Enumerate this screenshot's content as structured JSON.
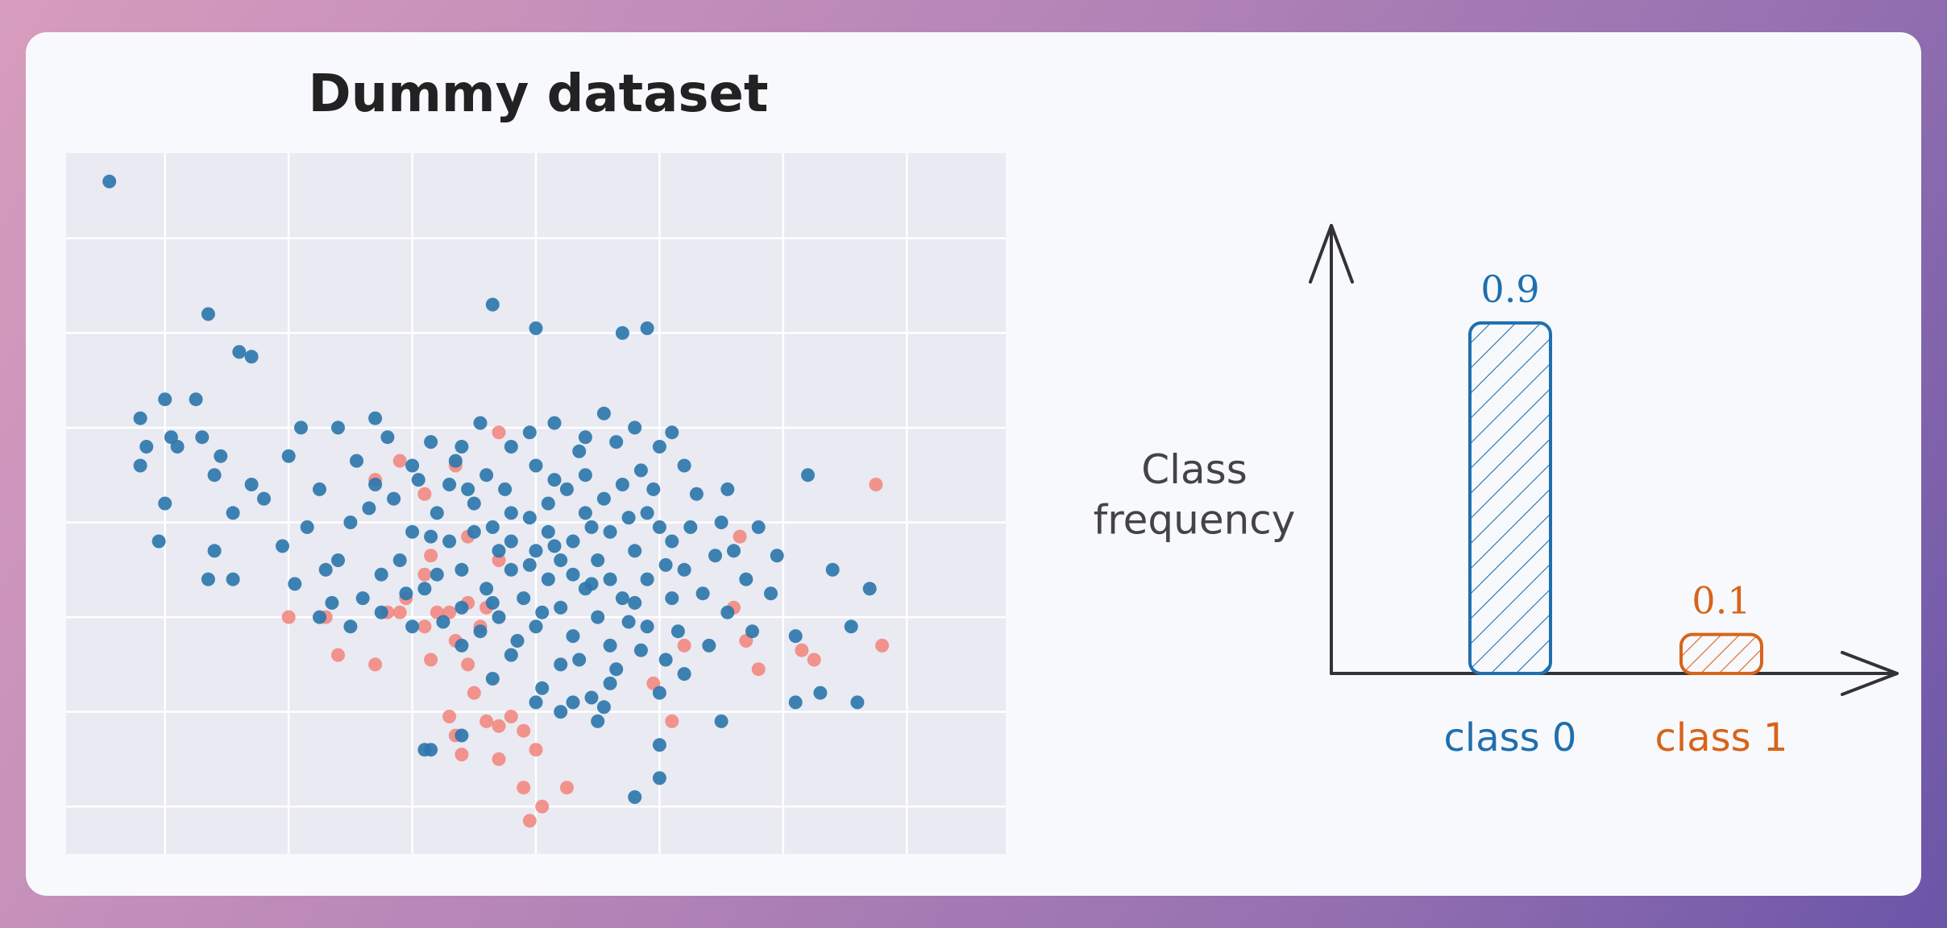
{
  "chart_data": [
    {
      "type": "scatter",
      "title": "Dummy dataset",
      "xlabel": "",
      "ylabel": "",
      "xlim": [
        -3.8,
        3.8
      ],
      "ylim": [
        -3.0,
        4.4
      ],
      "grid": true,
      "tick_labels_visible": false,
      "series": [
        {
          "name": "class 0",
          "color": "#2e77ad",
          "points": [
            [
              -3.45,
              4.1
            ],
            [
              -2.65,
              2.7
            ],
            [
              -2.4,
              2.3
            ],
            [
              -2.3,
              2.25
            ],
            [
              -3.0,
              1.8
            ],
            [
              -2.75,
              1.8
            ],
            [
              -3.2,
              1.6
            ],
            [
              -2.95,
              1.4
            ],
            [
              -2.7,
              1.4
            ],
            [
              -3.15,
              1.3
            ],
            [
              -2.9,
              1.3
            ],
            [
              -2.55,
              1.2
            ],
            [
              -3.2,
              1.1
            ],
            [
              -2.6,
              1.0
            ],
            [
              -2.3,
              0.9
            ],
            [
              -3.0,
              0.7
            ],
            [
              -2.45,
              0.6
            ],
            [
              -3.05,
              0.3
            ],
            [
              -2.6,
              0.2
            ],
            [
              -2.65,
              -0.1
            ],
            [
              -2.45,
              -0.1
            ],
            [
              -1.3,
              1.6
            ],
            [
              -0.35,
              2.8
            ],
            [
              0.0,
              2.55
            ],
            [
              0.7,
              2.5
            ],
            [
              0.9,
              2.55
            ],
            [
              2.2,
              1.0
            ],
            [
              2.4,
              0.0
            ],
            [
              2.7,
              -0.2
            ],
            [
              2.55,
              -0.6
            ],
            [
              2.1,
              -0.7
            ],
            [
              2.3,
              -1.3
            ],
            [
              2.1,
              -1.4
            ],
            [
              2.6,
              -1.4
            ],
            [
              1.0,
              -1.85
            ],
            [
              1.5,
              -1.6
            ],
            [
              -0.6,
              -1.75
            ],
            [
              -0.85,
              -1.9
            ],
            [
              -0.9,
              -1.9
            ],
            [
              0.8,
              -2.4
            ],
            [
              1.0,
              -2.2
            ],
            [
              0.3,
              -1.4
            ],
            [
              0.5,
              -1.6
            ],
            [
              -1.75,
              -0.5
            ],
            [
              -1.5,
              -0.6
            ],
            [
              -1.7,
              0.0
            ],
            [
              -2.0,
              1.2
            ],
            [
              -1.6,
              1.5
            ],
            [
              -1.9,
              1.5
            ],
            [
              -1.2,
              1.4
            ],
            [
              -0.6,
              1.3
            ],
            [
              -0.2,
              1.3
            ],
            [
              0.4,
              1.4
            ],
            [
              0.8,
              1.5
            ],
            [
              1.0,
              1.3
            ],
            [
              1.2,
              1.1
            ],
            [
              1.3,
              0.8
            ],
            [
              1.5,
              0.5
            ],
            [
              1.6,
              0.2
            ],
            [
              1.7,
              -0.1
            ],
            [
              1.55,
              -0.45
            ],
            [
              1.4,
              -0.8
            ],
            [
              1.2,
              -1.1
            ],
            [
              1.0,
              -1.3
            ],
            [
              0.6,
              -1.2
            ],
            [
              0.2,
              -1.0
            ],
            [
              -0.2,
              -0.9
            ],
            [
              -0.6,
              -0.8
            ],
            [
              -1.0,
              -0.6
            ],
            [
              -1.4,
              -0.3
            ],
            [
              -1.6,
              0.1
            ],
            [
              -1.5,
              0.5
            ],
            [
              -1.3,
              0.9
            ],
            [
              -1.0,
              1.1
            ],
            [
              -0.7,
              0.9
            ],
            [
              -0.4,
              1.0
            ],
            [
              0.0,
              1.1
            ],
            [
              0.4,
              1.0
            ],
            [
              0.7,
              0.9
            ],
            [
              0.9,
              0.6
            ],
            [
              1.1,
              0.3
            ],
            [
              1.2,
              0.0
            ],
            [
              1.1,
              -0.3
            ],
            [
              0.9,
              -0.6
            ],
            [
              0.6,
              -0.8
            ],
            [
              0.3,
              -0.7
            ],
            [
              0.0,
              -0.6
            ],
            [
              -0.3,
              -0.5
            ],
            [
              -0.6,
              -0.4
            ],
            [
              -0.9,
              -0.2
            ],
            [
              -1.1,
              0.1
            ],
            [
              -1.0,
              0.4
            ],
            [
              -0.8,
              0.6
            ],
            [
              -0.5,
              0.7
            ],
            [
              -0.2,
              0.6
            ],
            [
              0.1,
              0.7
            ],
            [
              0.4,
              0.6
            ],
            [
              0.6,
              0.4
            ],
            [
              0.8,
              0.2
            ],
            [
              0.9,
              -0.1
            ],
            [
              0.7,
              -0.3
            ],
            [
              0.5,
              -0.5
            ],
            [
              0.2,
              -0.4
            ],
            [
              -0.1,
              -0.3
            ],
            [
              -0.4,
              -0.2
            ],
            [
              -0.6,
              0.0
            ],
            [
              -0.7,
              0.3
            ],
            [
              -0.5,
              0.4
            ],
            [
              -0.2,
              0.3
            ],
            [
              0.1,
              0.4
            ],
            [
              0.3,
              0.3
            ],
            [
              0.5,
              0.1
            ],
            [
              0.6,
              -0.1
            ],
            [
              0.4,
              -0.2
            ],
            [
              0.1,
              -0.1
            ],
            [
              -0.2,
              0.0
            ],
            [
              -0.3,
              0.2
            ],
            [
              0.0,
              0.2
            ],
            [
              0.2,
              0.1
            ],
            [
              0.3,
              -0.05
            ],
            [
              -0.05,
              0.05
            ],
            [
              0.15,
              0.25
            ],
            [
              -0.35,
              0.45
            ],
            [
              0.45,
              0.45
            ],
            [
              0.55,
              0.75
            ],
            [
              -0.55,
              0.85
            ],
            [
              0.25,
              0.85
            ],
            [
              -0.25,
              0.85
            ],
            [
              0.85,
              1.05
            ],
            [
              -0.85,
              0.35
            ],
            [
              -1.25,
              -0.05
            ],
            [
              1.05,
              0.05
            ],
            [
              1.35,
              -0.25
            ],
            [
              1.25,
              0.45
            ],
            [
              0.75,
              -0.55
            ],
            [
              0.35,
              -0.95
            ],
            [
              -0.15,
              -0.75
            ],
            [
              -0.45,
              -0.65
            ],
            [
              -0.75,
              -0.55
            ],
            [
              0.85,
              -0.85
            ],
            [
              1.05,
              -0.95
            ],
            [
              0.65,
              -1.05
            ],
            [
              1.45,
              0.15
            ],
            [
              -1.35,
              0.65
            ],
            [
              -1.15,
              0.75
            ],
            [
              -0.95,
              0.95
            ],
            [
              0.95,
              0.85
            ],
            [
              0.35,
              1.25
            ],
            [
              -0.05,
              1.45
            ],
            [
              0.65,
              1.35
            ],
            [
              0.55,
              1.65
            ],
            [
              0.15,
              1.55
            ],
            [
              -0.45,
              1.55
            ],
            [
              -0.85,
              1.35
            ],
            [
              -1.45,
              1.15
            ],
            [
              -1.75,
              0.85
            ],
            [
              -1.85,
              0.45
            ],
            [
              -2.05,
              0.25
            ],
            [
              -2.2,
              0.75
            ],
            [
              -1.95,
              -0.15
            ],
            [
              -1.65,
              -0.35
            ],
            [
              -1.25,
              -0.45
            ],
            [
              -0.35,
              -1.15
            ],
            [
              0.05,
              -1.25
            ],
            [
              0.45,
              -1.35
            ],
            [
              1.75,
              -0.65
            ],
            [
              1.9,
              -0.25
            ],
            [
              1.95,
              0.15
            ],
            [
              1.8,
              0.45
            ],
            [
              1.55,
              0.85
            ],
            [
              1.1,
              1.45
            ],
            [
              0.0,
              -1.4
            ],
            [
              0.2,
              -1.5
            ],
            [
              0.55,
              -1.45
            ],
            [
              0.8,
              -0.35
            ],
            [
              -0.8,
              -0.05
            ],
            [
              -0.05,
              0.55
            ],
            [
              0.05,
              -0.45
            ],
            [
              1.0,
              0.45
            ],
            [
              -1.05,
              -0.25
            ],
            [
              0.15,
              0.95
            ],
            [
              -0.65,
              1.15
            ],
            [
              0.75,
              0.55
            ],
            [
              1.15,
              -0.65
            ],
            [
              -0.35,
              -0.35
            ],
            [
              0.45,
              -0.15
            ]
          ]
        },
        {
          "name": "class 1",
          "color": "#f2837a",
          "points": [
            [
              -2.0,
              -0.5
            ],
            [
              -1.7,
              -0.5
            ],
            [
              -1.6,
              -0.9
            ],
            [
              -1.3,
              -1.0
            ],
            [
              -0.9,
              -0.6
            ],
            [
              -0.85,
              -0.95
            ],
            [
              -0.7,
              -0.45
            ],
            [
              -0.65,
              -0.75
            ],
            [
              -0.55,
              -1.0
            ],
            [
              -0.5,
              -1.3
            ],
            [
              -0.7,
              -1.55
            ],
            [
              -0.65,
              -1.75
            ],
            [
              -0.4,
              -1.6
            ],
            [
              -0.3,
              -1.65
            ],
            [
              -0.2,
              -1.55
            ],
            [
              -0.1,
              -1.7
            ],
            [
              0.0,
              -1.9
            ],
            [
              -0.3,
              -2.0
            ],
            [
              -0.1,
              -2.3
            ],
            [
              0.05,
              -2.5
            ],
            [
              0.25,
              -2.3
            ],
            [
              -0.05,
              -2.65
            ],
            [
              -0.6,
              -1.95
            ],
            [
              -0.4,
              -0.4
            ],
            [
              -0.55,
              -0.35
            ],
            [
              -0.8,
              -0.45
            ],
            [
              -1.1,
              -0.45
            ],
            [
              -1.2,
              -0.45
            ],
            [
              -1.05,
              -0.3
            ],
            [
              -0.9,
              -0.05
            ],
            [
              -0.85,
              0.15
            ],
            [
              -0.55,
              0.35
            ],
            [
              -0.3,
              0.1
            ],
            [
              -0.9,
              0.8
            ],
            [
              -1.3,
              0.95
            ],
            [
              -1.1,
              1.15
            ],
            [
              -0.65,
              1.1
            ],
            [
              -0.3,
              1.45
            ],
            [
              1.6,
              -0.4
            ],
            [
              1.7,
              -0.75
            ],
            [
              1.2,
              -0.8
            ],
            [
              1.1,
              -1.6
            ],
            [
              0.95,
              -1.2
            ],
            [
              1.8,
              -1.05
            ],
            [
              2.15,
              -0.85
            ],
            [
              2.25,
              -0.95
            ],
            [
              2.75,
              0.9
            ],
            [
              2.8,
              -0.8
            ],
            [
              1.65,
              0.35
            ],
            [
              -0.45,
              -0.6
            ]
          ]
        }
      ]
    },
    {
      "type": "bar",
      "title": "",
      "ylabel": "Class frequency",
      "categories": [
        "class 0",
        "class 1"
      ],
      "values": [
        0.9,
        0.1
      ],
      "value_labels": [
        "0.9",
        "0.1"
      ],
      "colors": [
        "#1f6fae",
        "#d7641a"
      ],
      "ylim": [
        0,
        1.15
      ]
    }
  ]
}
